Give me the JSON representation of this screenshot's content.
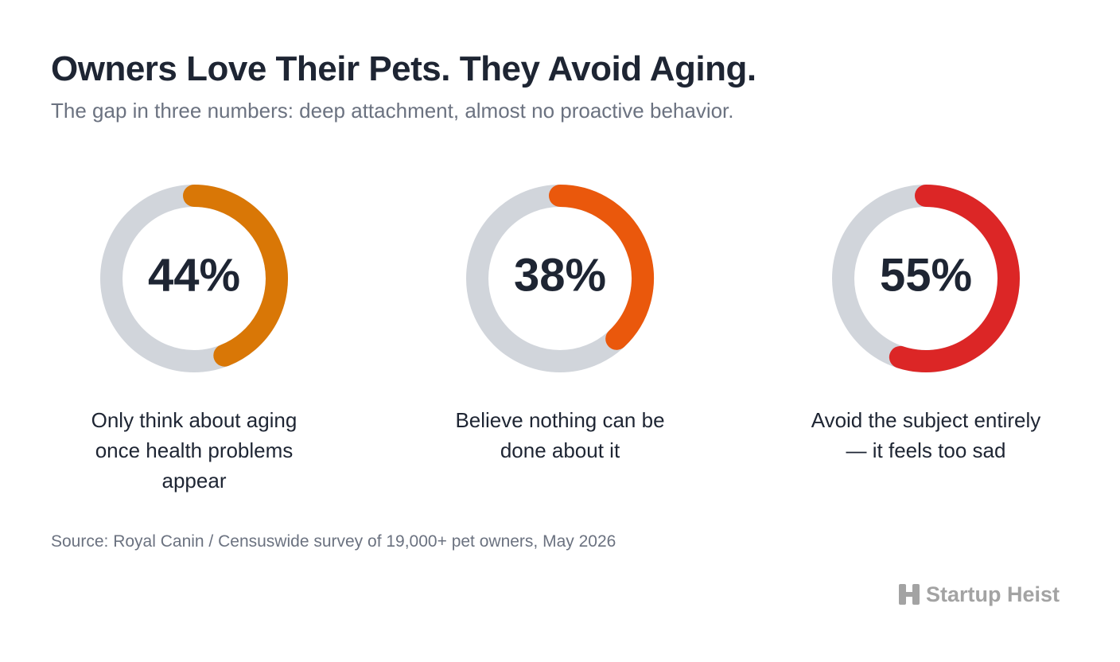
{
  "title": "Owners Love Their Pets. They Avoid Aging.",
  "subtitle": "The gap in three numbers: deep attachment, almost no proactive behavior.",
  "source": "Source: Royal Canin / Censuswide survey of 19,000+ pet owners, May 2026",
  "brand": "Startup Heist",
  "chart_data": [
    {
      "type": "donut",
      "values": [
        44
      ],
      "value_labels": [
        "44%"
      ],
      "ylim": [
        0,
        100
      ],
      "color": "#d97706",
      "track_color": "#d1d5db",
      "label": "Only think about aging once health problems appear"
    },
    {
      "type": "donut",
      "values": [
        38
      ],
      "value_labels": [
        "38%"
      ],
      "ylim": [
        0,
        100
      ],
      "color": "#ea580c",
      "track_color": "#d1d5db",
      "label": "Believe nothing can be done about it"
    },
    {
      "type": "donut",
      "values": [
        55
      ],
      "value_labels": [
        "55%"
      ],
      "ylim": [
        0,
        100
      ],
      "color": "#dc2626",
      "track_color": "#d1d5db",
      "label": "Avoid the subject entirely — it feels too sad"
    }
  ]
}
